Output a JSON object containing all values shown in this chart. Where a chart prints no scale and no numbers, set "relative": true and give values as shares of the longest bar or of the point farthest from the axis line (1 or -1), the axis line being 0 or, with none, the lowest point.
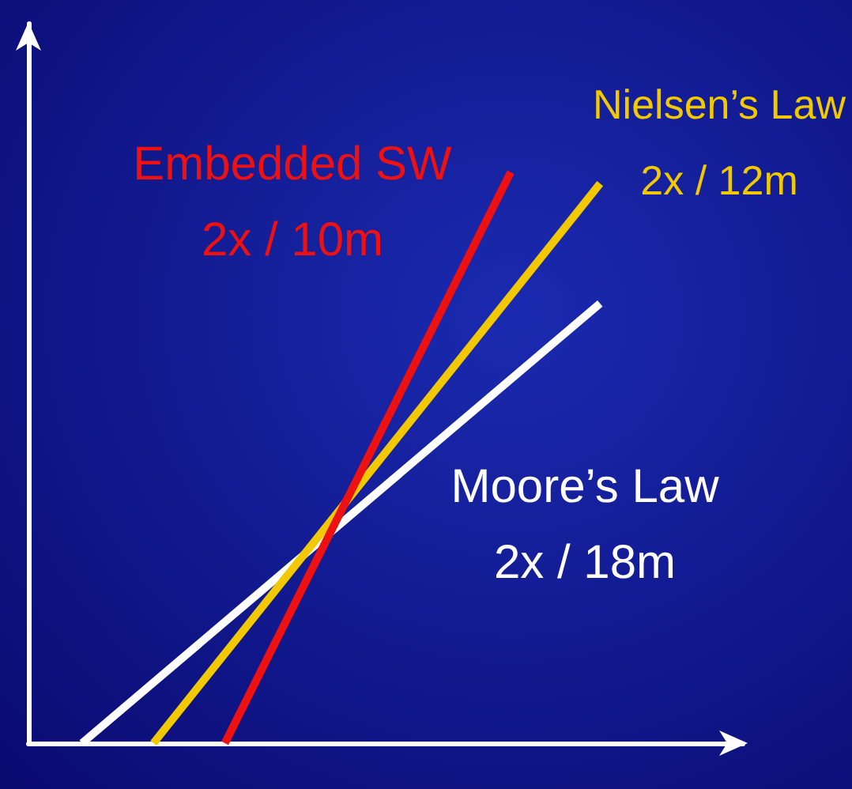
{
  "chart_data": {
    "type": "line",
    "relative": true,
    "line_style": "solid",
    "categories": [
      null,
      null,
      null,
      null,
      null,
      null,
      null,
      null,
      null,
      null,
      null,
      null,
      null,
      null,
      null,
      null,
      null,
      null,
      null,
      null,
      null,
      null,
      null,
      null,
      null,
      null,
      null,
      null,
      null,
      null,
      null,
      null,
      null,
      null,
      null,
      null,
      null,
      null,
      null,
      null,
      null
    ],
    "series": [
      {
        "name": "Moore’s Law\n2x / 18m",
        "color": "#ffffff",
        "values": [
          null,
          null,
          null,
          0,
          null,
          null,
          null,
          null,
          null,
          null,
          null,
          null,
          null,
          null,
          null,
          null,
          null,
          null,
          null,
          null,
          null,
          null,
          null,
          null,
          null,
          null,
          null,
          null,
          null,
          null,
          null,
          null,
          0.77,
          null,
          null,
          null,
          null,
          null,
          null,
          null,
          null
        ]
      },
      {
        "name": "Nielsen’s Law\n2x / 12m",
        "color": "#f2c800",
        "values": [
          null,
          null,
          null,
          null,
          null,
          null,
          null,
          0,
          null,
          null,
          null,
          null,
          null,
          null,
          null,
          null,
          null,
          null,
          null,
          null,
          null,
          null,
          null,
          null,
          null,
          null,
          null,
          null,
          null,
          null,
          null,
          null,
          0.98,
          null,
          null,
          null,
          null,
          null,
          null,
          null,
          null
        ]
      },
      {
        "name": "Embedded SW\n2x / 10m",
        "color": "#ee1111",
        "values": [
          null,
          null,
          null,
          null,
          null,
          null,
          null,
          null,
          null,
          null,
          null,
          0,
          null,
          null,
          null,
          null,
          null,
          null,
          null,
          null,
          null,
          null,
          null,
          null,
          null,
          null,
          null,
          1,
          null,
          null,
          null,
          null,
          null,
          null,
          null,
          null,
          null,
          null,
          null,
          null,
          null
        ]
      }
    ]
  }
}
